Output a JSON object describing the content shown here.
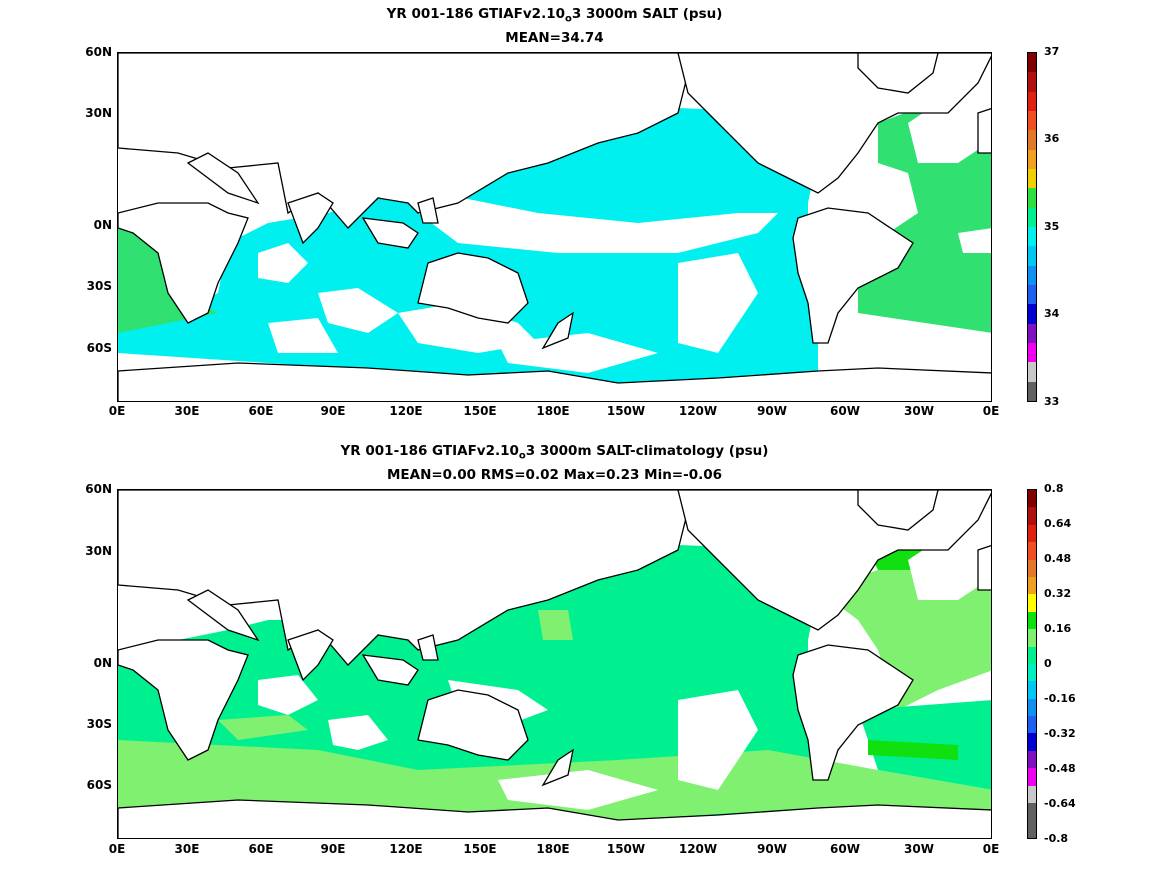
{
  "panels": [
    {
      "title_a": "YR 001-186 GTIAFv2.10",
      "title_sub": "o",
      "title_b": "3 3000m SALT (psu)",
      "subtitle": "MEAN=34.74",
      "colorbar_labels": [
        "37",
        "36",
        "35",
        "34",
        "33"
      ],
      "colorbar_colors": [
        "#800000",
        "#b01010",
        "#e02010",
        "#f05020",
        "#e07828",
        "#f0a020",
        "#f0d000",
        "#30e040",
        "#00f090",
        "#00f0f0",
        "#00c8f0",
        "#1090f0",
        "#2060f0",
        "#0000d0",
        "#8010c0",
        "#f000f0",
        "#c8c8c8",
        "#606060"
      ]
    },
    {
      "title_a": "YR 001-186 GTIAFv2.10",
      "title_sub": "o",
      "title_b": "3 3000m SALT-climatology (psu)",
      "subtitle": "MEAN=0.00   RMS=0.02   Max=0.23   Min=-0.06",
      "colorbar_labels": [
        "0.8",
        "0.64",
        "0.48",
        "0.32",
        "0.16",
        "0",
        "-0.16",
        "-0.32",
        "-0.48",
        "-0.64",
        "-0.8"
      ],
      "colorbar_colors": [
        "#800000",
        "#b01010",
        "#e02010",
        "#f05020",
        "#e07828",
        "#f0a020",
        "#ffff00",
        "#10e010",
        "#80f070",
        "#00f090",
        "#00f0c0",
        "#00c8f0",
        "#1090f0",
        "#2060f0",
        "#0000d0",
        "#8010c0",
        "#f000f0",
        "#c8c8c8",
        "#606060",
        "#606060"
      ]
    }
  ],
  "lat_labels": [
    "60N",
    "30N",
    "0N",
    "30S",
    "60S"
  ],
  "lon_labels": [
    "0E",
    "30E",
    "60E",
    "90E",
    "120E",
    "150E",
    "180E",
    "150W",
    "120W",
    "90W",
    "60W",
    "30W",
    "0E"
  ]
}
